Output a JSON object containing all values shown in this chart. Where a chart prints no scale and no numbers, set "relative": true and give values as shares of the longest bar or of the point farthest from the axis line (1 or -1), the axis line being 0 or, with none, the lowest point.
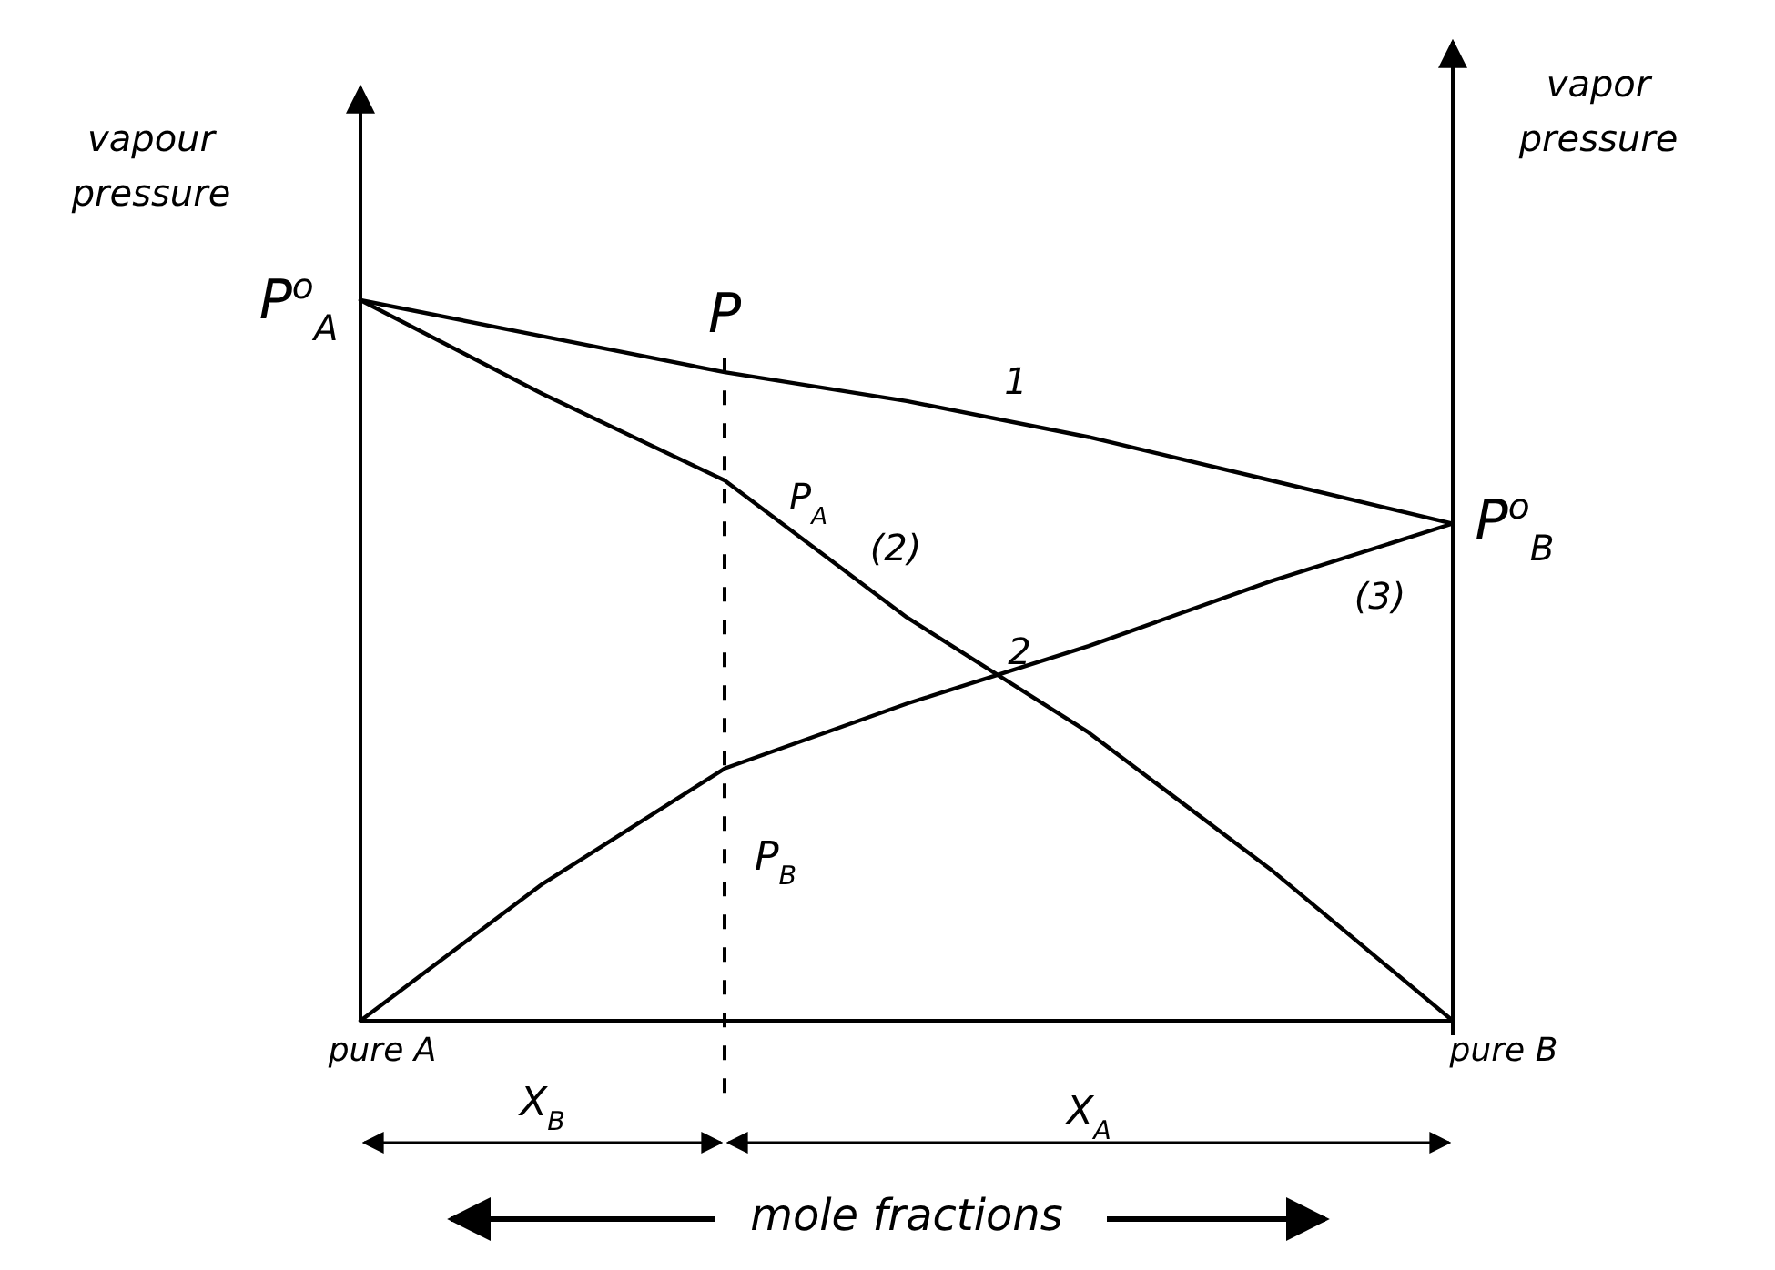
{
  "chart_data": {
    "type": "line",
    "relative": true,
    "xlabel": "mole fractions",
    "ylabel": "vapour pressure",
    "y2label": "vapor pressure",
    "categories": [
      null,
      null,
      null,
      null,
      null,
      null,
      null
    ],
    "series": [
      {
        "name": "1",
        "color": "#000000",
        "values": [
          1,
          0.95,
          0.9,
          0.86,
          0.81,
          0.75,
          0.69
        ]
      },
      {
        "name": "2",
        "color": "#000000",
        "values": [
          1,
          0.87,
          0.75,
          0.56,
          0.4,
          0.21,
          0
        ]
      },
      {
        "name": "(3)",
        "color": "#000000",
        "values": [
          0,
          0.19,
          0.35,
          0.44,
          0.52,
          0.61,
          0.69
        ]
      }
    ],
    "annotations": [
      "P",
      "P$^{o}$$_{A}$",
      "P$^{o}$$_{B}$",
      "P$_{A}$",
      "(2)",
      "P$_{B}$",
      "pure A",
      "pure B",
      "X$_{B}$",
      "X$_{A}$"
    ]
  }
}
